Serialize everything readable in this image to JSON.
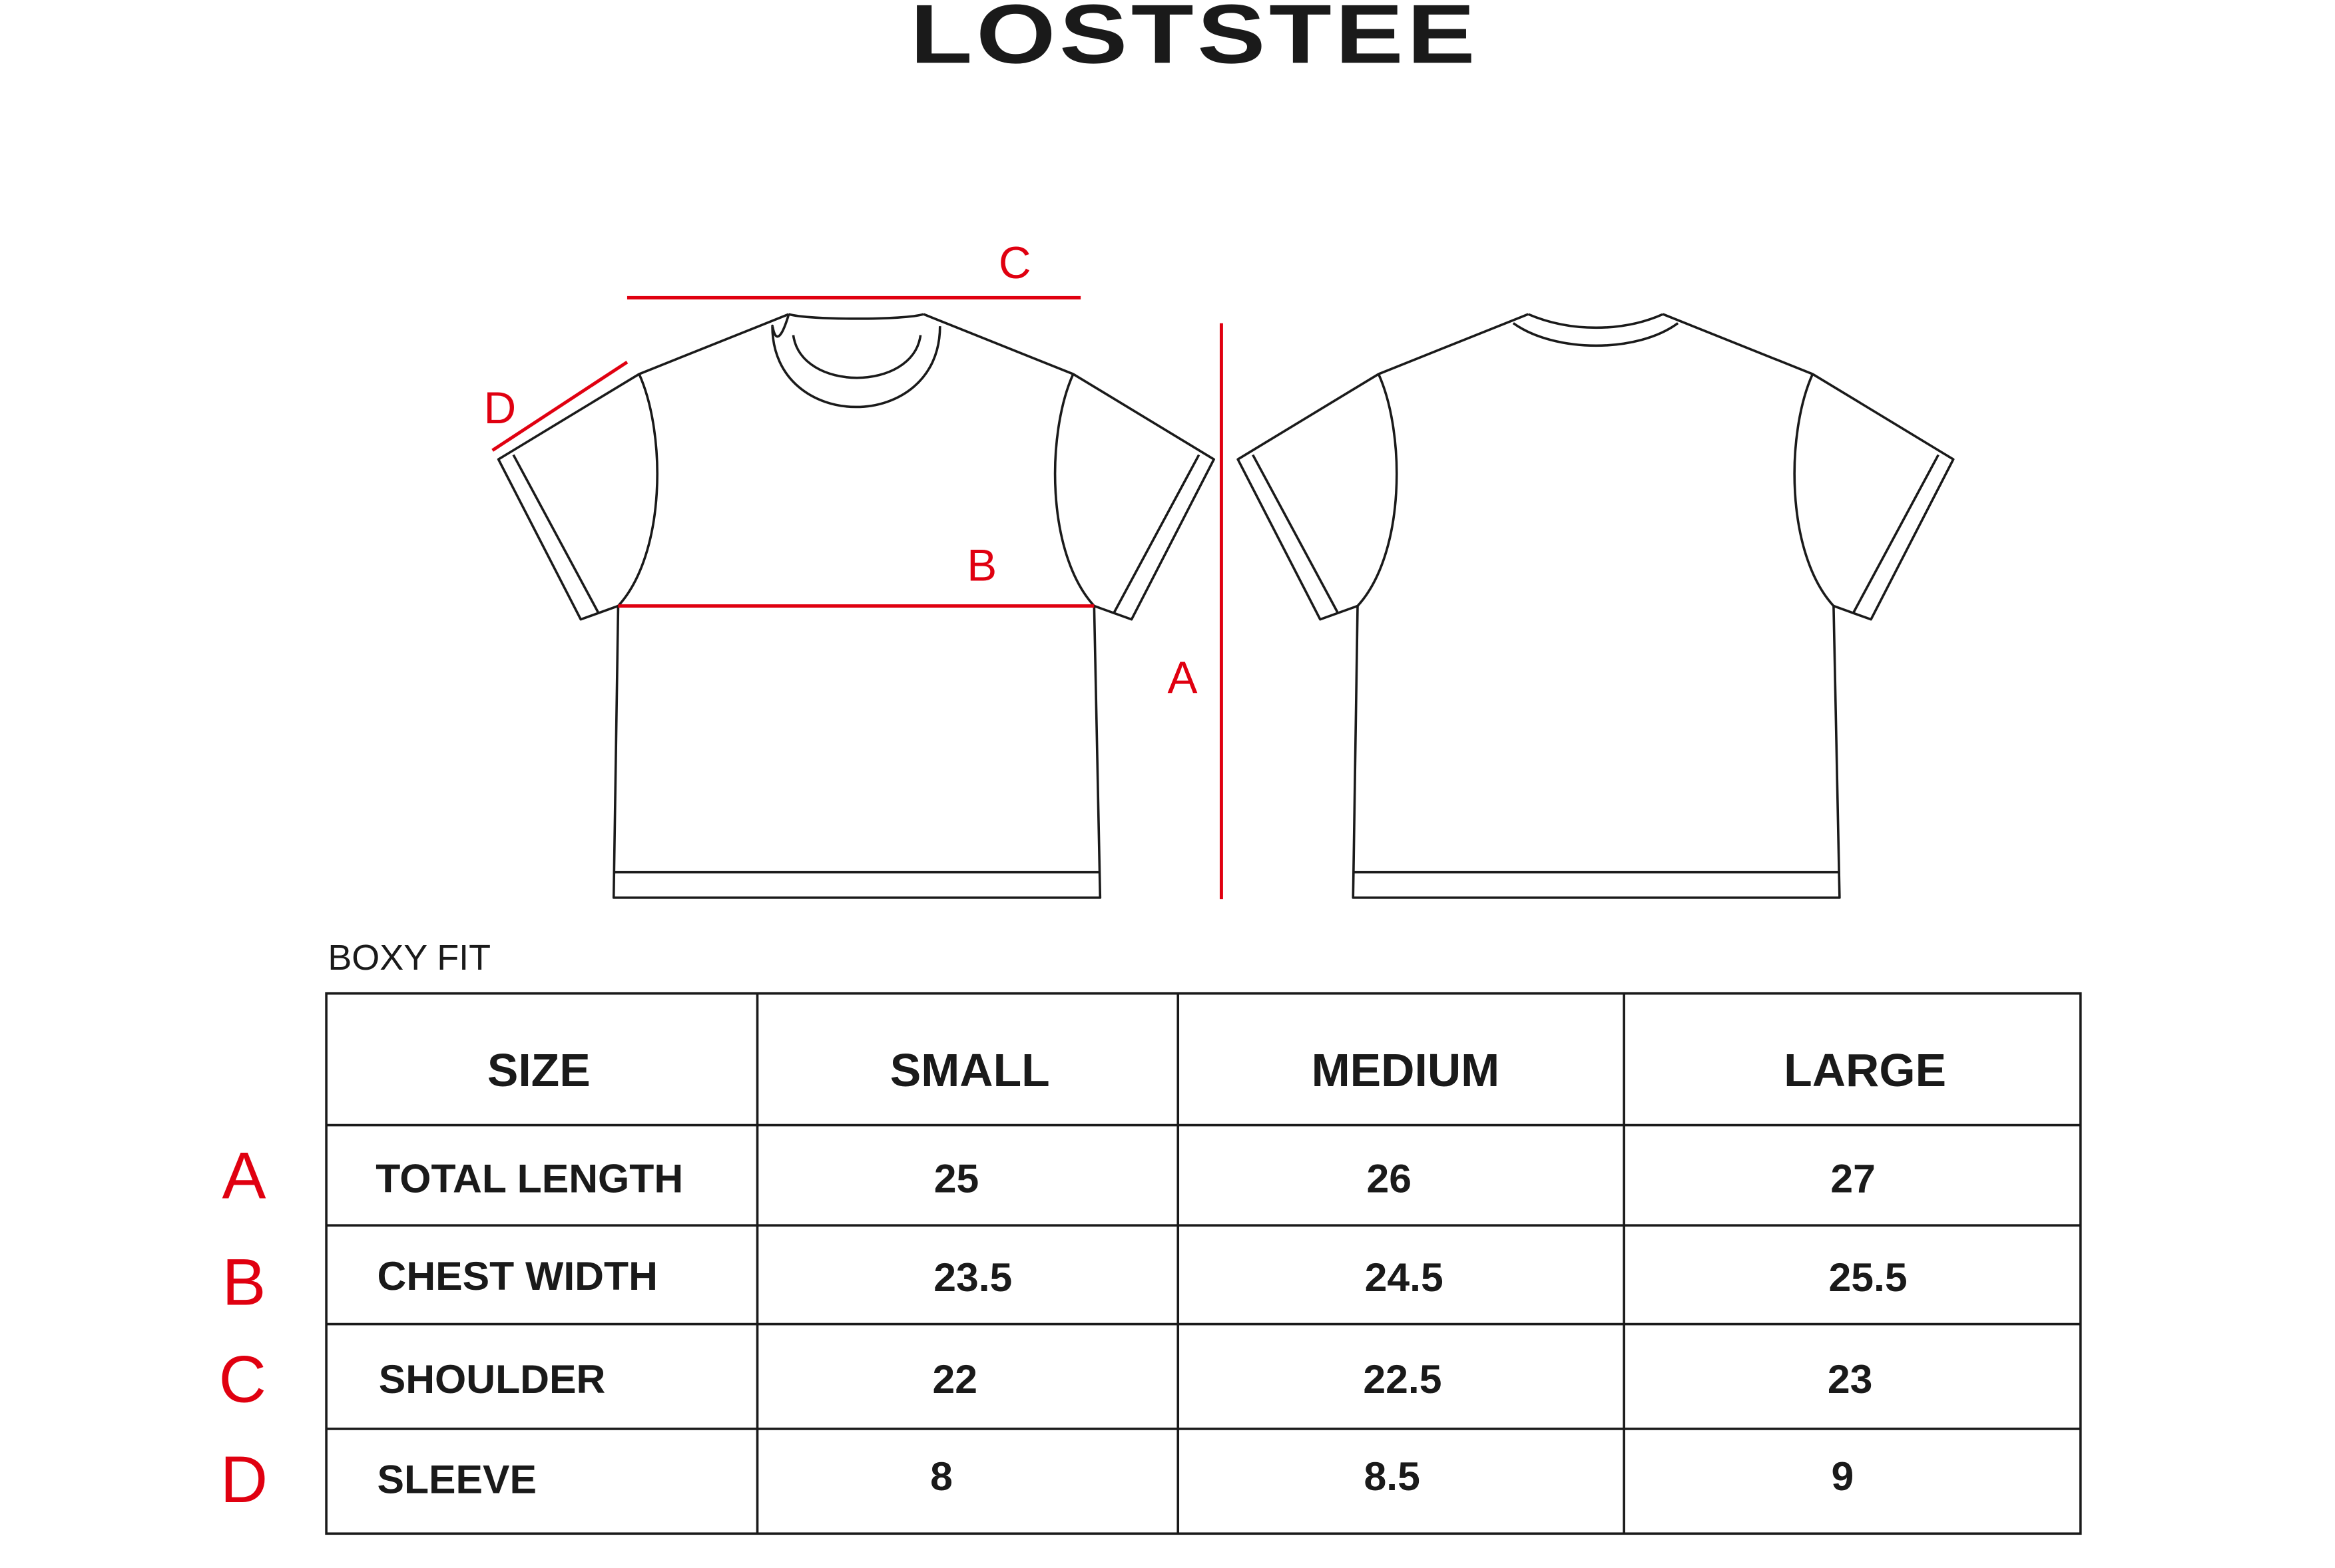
{
  "brand": "LOSTSTEE",
  "diagram": {
    "labels": {
      "a": "A",
      "b": "B",
      "c": "C",
      "d": "D"
    },
    "accent_color": "#e00010"
  },
  "fit_label": "BOXY FIT",
  "table": {
    "headers": [
      "SIZE",
      "SMALL",
      "MEDIUM",
      "LARGE"
    ],
    "rows": [
      {
        "key": "A",
        "label": "TOTAL LENGTH",
        "values": [
          "25",
          "26",
          "27"
        ]
      },
      {
        "key": "B",
        "label": "CHEST WIDTH",
        "values": [
          "23.5",
          "24.5",
          "25.5"
        ]
      },
      {
        "key": "C",
        "label": "SHOULDER",
        "values": [
          "22",
          "22.5",
          "23"
        ]
      },
      {
        "key": "D",
        "label": "SLEEVE",
        "values": [
          "8",
          "8.5",
          "9"
        ]
      }
    ]
  }
}
